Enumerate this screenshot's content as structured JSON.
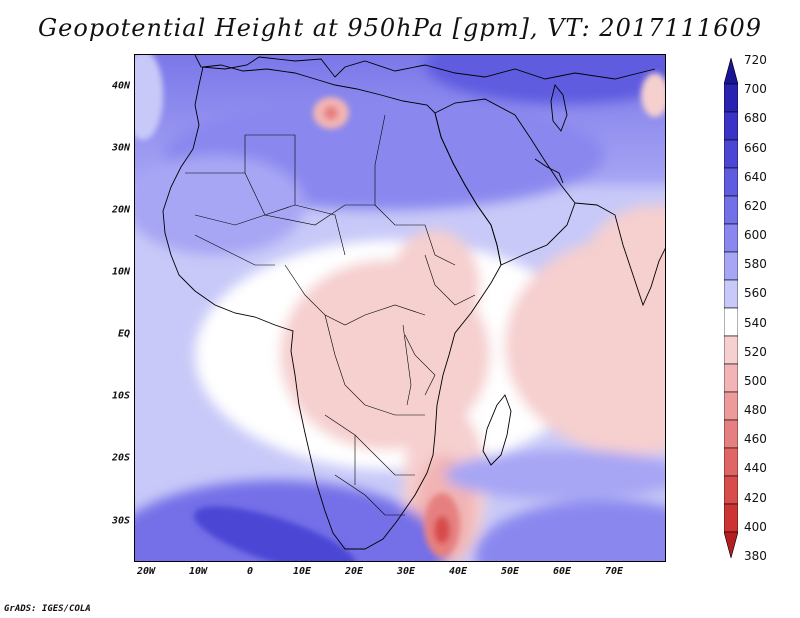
{
  "title": "Geopotential Height at 950hPa [gpm], VT: 2017111609",
  "credit": "GrADS: IGES/COLA",
  "lat_labels": [
    "40N",
    "30N",
    "20N",
    "10N",
    "EQ",
    "10S",
    "20S",
    "30S"
  ],
  "lon_labels": [
    "20W",
    "10W",
    "0",
    "10E",
    "20E",
    "30E",
    "40E",
    "50E",
    "60E",
    "70E"
  ],
  "colorbar": {
    "levels": [
      "720",
      "700",
      "680",
      "660",
      "640",
      "620",
      "600",
      "580",
      "560",
      "540",
      "520",
      "500",
      "480",
      "460",
      "440",
      "420",
      "400",
      "380"
    ],
    "colors": [
      "#1a1496",
      "#2a22b0",
      "#3a34c6",
      "#4c46d4",
      "#5f5ce0",
      "#7470e8",
      "#8a88ef",
      "#a7a6f4",
      "#c8c9f8",
      "#ffffff",
      "#f6cfcf",
      "#f2b4b4",
      "#ec9a9a",
      "#e68080",
      "#e06666",
      "#d84c4c",
      "#cc3333",
      "#b41e1e"
    ]
  },
  "map_colors": {
    "ocean_west": "#8a88ef",
    "deep_blue": "#4c46d4",
    "mid_blue": "#a7a6f4",
    "light_blue": "#c8c9f8",
    "white": "#ffffff",
    "pink": "#f6cfcf",
    "light_red": "#f2b4b4",
    "red": "#e68080",
    "dark_red": "#d84c4c",
    "coast": "#000000"
  }
}
